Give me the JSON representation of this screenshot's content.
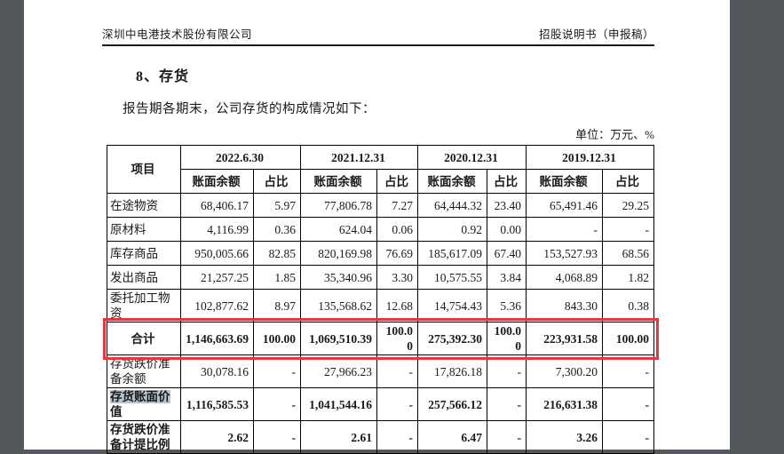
{
  "page": {
    "header_left": "深圳中电港技术股份有限公司",
    "header_right": "招股说明书（申报稿）",
    "section_title": "8、存货",
    "intro": "报告期各期末，公司存货的构成情况如下：",
    "unit_note": "单位：万元、%"
  },
  "colors": {
    "viewer_background_gray": "#54585c",
    "page_white": "#ffffff",
    "annotation_red_box": "#e2383f",
    "label_selection_blue": "#b7c4ce"
  },
  "table": {
    "item_header": "项目",
    "periods": [
      "2022.6.30",
      "2021.12.31",
      "2020.12.31",
      "2019.12.31"
    ],
    "sub_headers": [
      "账面余额",
      "占比"
    ],
    "rows": [
      {
        "label": "在途物资",
        "values": [
          "68,406.17",
          "5.97",
          "77,806.78",
          "7.27",
          "64,444.32",
          "23.40",
          "65,491.46",
          "29.25"
        ]
      },
      {
        "label": "原材料",
        "values": [
          "4,116.99",
          "0.36",
          "624.04",
          "0.06",
          "0.92",
          "0.00",
          "-",
          "-"
        ]
      },
      {
        "label": "库存商品",
        "values": [
          "950,005.66",
          "82.85",
          "820,169.98",
          "76.69",
          "185,617.09",
          "67.40",
          "153,527.93",
          "68.56"
        ]
      },
      {
        "label": "发出商品",
        "values": [
          "21,257.25",
          "1.85",
          "35,340.96",
          "3.30",
          "10,575.55",
          "3.84",
          "4,068.89",
          "1.82"
        ]
      },
      {
        "label": "委托加工物资",
        "values": [
          "102,877.62",
          "8.97",
          "135,568.62",
          "12.68",
          "14,754.43",
          "5.36",
          "843.30",
          "0.38"
        ]
      },
      {
        "label": "合计",
        "bold": true,
        "center_label": true,
        "total": true,
        "values": [
          "1,146,663.69",
          "100.00",
          "1,069,510.39",
          "100.00",
          "275,392.30",
          "100.00",
          "223,931.58",
          "100.00"
        ]
      },
      {
        "label": "存货跌价准备余额",
        "values": [
          "30,078.16",
          "-",
          "27,966.23",
          "-",
          "17,826.18",
          "-",
          "7,300.20",
          "-"
        ]
      },
      {
        "label": "存货账面价值",
        "bold": true,
        "label_highlight": "存货账面价",
        "label_rest": "值",
        "values": [
          "1,116,585.53",
          "-",
          "1,041,544.16",
          "-",
          "257,566.12",
          "-",
          "216,631.38",
          "-"
        ]
      },
      {
        "label": "存货跌价准备计提比例",
        "bold": true,
        "values": [
          "2.62",
          "-",
          "2.61",
          "-",
          "6.47",
          "-",
          "3.26",
          "-"
        ]
      }
    ]
  }
}
